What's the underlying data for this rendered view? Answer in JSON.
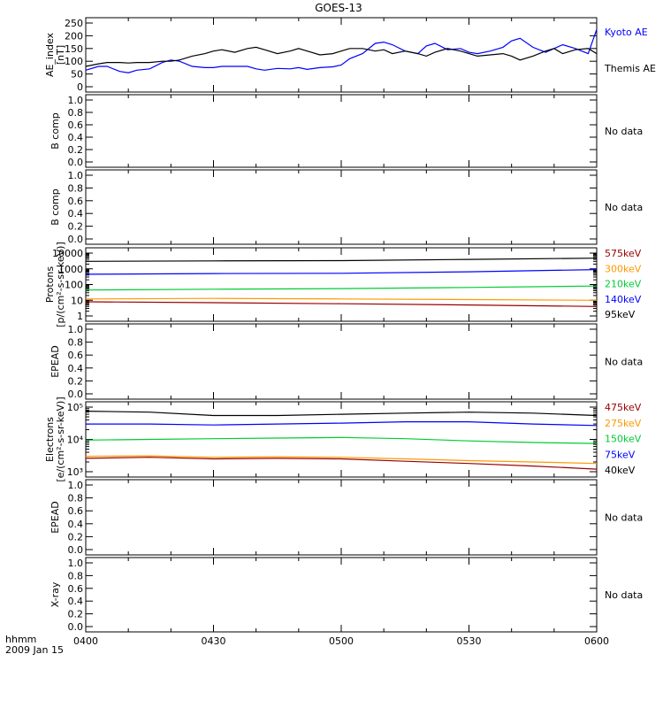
{
  "title": "GOES-13",
  "footer": {
    "unit": "hhmm",
    "date": "2009 Jan 15"
  },
  "time_ticks": [
    "0400",
    "0430",
    "0500",
    "0530",
    "0600"
  ],
  "chart_data": [
    {
      "id": "ae",
      "type": "line",
      "ylabel": [
        "AE_index",
        "[nT]"
      ],
      "ylim": [
        0,
        250
      ],
      "yticks": [
        "0",
        "50",
        "100",
        "150",
        "200",
        "250"
      ],
      "x_range": [
        "04:00",
        "06:00"
      ],
      "legend": [
        {
          "label": "Kyoto AE",
          "color": "#0000ff"
        },
        {
          "label": "Themis AE",
          "color": "#000000"
        }
      ],
      "series": [
        {
          "name": "Kyoto AE",
          "color": "#0000ff",
          "t": [
            0,
            3,
            5,
            8,
            10,
            12,
            15,
            18,
            20,
            22,
            25,
            28,
            30,
            32,
            35,
            38,
            40,
            42,
            45,
            48,
            50,
            52,
            55,
            58,
            60,
            62,
            65,
            68,
            70,
            72,
            75,
            78,
            80,
            82,
            85,
            88,
            90,
            92,
            95,
            98,
            100,
            102,
            105,
            108,
            110,
            112,
            115,
            118,
            120
          ],
          "v": [
            65,
            80,
            80,
            60,
            55,
            65,
            70,
            95,
            105,
            100,
            80,
            75,
            75,
            80,
            80,
            80,
            70,
            65,
            72,
            70,
            75,
            68,
            75,
            78,
            85,
            110,
            130,
            170,
            175,
            165,
            140,
            130,
            160,
            170,
            145,
            150,
            135,
            130,
            140,
            155,
            180,
            190,
            155,
            135,
            150,
            165,
            150,
            130,
            225
          ]
        },
        {
          "name": "Themis AE",
          "color": "#000000",
          "t": [
            0,
            3,
            5,
            8,
            10,
            12,
            15,
            18,
            20,
            22,
            25,
            28,
            30,
            32,
            35,
            38,
            40,
            42,
            45,
            48,
            50,
            52,
            55,
            58,
            60,
            62,
            65,
            68,
            70,
            72,
            75,
            78,
            80,
            82,
            85,
            88,
            90,
            92,
            95,
            98,
            100,
            102,
            105,
            108,
            110,
            112,
            115,
            118,
            120
          ],
          "v": [
            80,
            90,
            95,
            95,
            93,
            95,
            95,
            100,
            100,
            105,
            120,
            130,
            140,
            145,
            135,
            150,
            155,
            145,
            130,
            140,
            150,
            140,
            125,
            130,
            140,
            150,
            150,
            140,
            145,
            130,
            140,
            130,
            120,
            135,
            150,
            140,
            130,
            120,
            125,
            130,
            120,
            105,
            120,
            140,
            150,
            130,
            145,
            150,
            130
          ]
        }
      ]
    },
    {
      "id": "b1",
      "type": "line",
      "ylabel": [
        "B comp"
      ],
      "ylim": [
        0,
        1
      ],
      "yticks": [
        "0.0",
        "0.2",
        "0.4",
        "0.6",
        "0.8",
        "1.0"
      ],
      "nodata": "No data"
    },
    {
      "id": "b2",
      "type": "line",
      "ylabel": [
        "B comp"
      ],
      "ylim": [
        0,
        1
      ],
      "yticks": [
        "0.0",
        "0.2",
        "0.4",
        "0.6",
        "0.8",
        "1.0"
      ],
      "nodata": "No data"
    },
    {
      "id": "protons",
      "type": "line",
      "log": true,
      "ylabel": [
        "Protons",
        "[p/(cm²-s-sr-keV)]"
      ],
      "ylim": [
        1,
        10000
      ],
      "yticks": [
        "1",
        "10",
        "100",
        "1000",
        "10000"
      ],
      "legend": [
        {
          "label": "575keV",
          "color": "#990000"
        },
        {
          "label": "300keV",
          "color": "#ff9900"
        },
        {
          "label": "210keV",
          "color": "#00cc33"
        },
        {
          "label": "140keV",
          "color": "#0000ff"
        },
        {
          "label": "95keV",
          "color": "#000000"
        }
      ],
      "series": [
        {
          "name": "95keV",
          "color": "#000000",
          "t": [
            0,
            30,
            60,
            90,
            120
          ],
          "v": [
            3000,
            3200,
            3300,
            4000,
            4800
          ]
        },
        {
          "name": "140keV",
          "color": "#0000ff",
          "t": [
            0,
            30,
            60,
            90,
            120
          ],
          "v": [
            450,
            500,
            520,
            650,
            900
          ]
        },
        {
          "name": "210keV",
          "color": "#00cc33",
          "t": [
            0,
            30,
            60,
            90,
            120
          ],
          "v": [
            45,
            50,
            55,
            65,
            80
          ]
        },
        {
          "name": "300keV",
          "color": "#ff9900",
          "t": [
            0,
            30,
            60,
            90,
            120
          ],
          "v": [
            12,
            13,
            12,
            11,
            10
          ]
        },
        {
          "name": "575keV",
          "color": "#990000",
          "t": [
            0,
            30,
            60,
            90,
            120
          ],
          "v": [
            8,
            7,
            6,
            5,
            4
          ]
        }
      ]
    },
    {
      "id": "epead1",
      "type": "line",
      "ylabel": [
        "EPEAD"
      ],
      "ylim": [
        0,
        1
      ],
      "yticks": [
        "0.0",
        "0.2",
        "0.4",
        "0.6",
        "0.8",
        "1.0"
      ],
      "nodata": "No data"
    },
    {
      "id": "electrons",
      "type": "line",
      "log": true,
      "ylabel": [
        "Electrons",
        "[e/(cm²-s-sr-keV)]"
      ],
      "ylim": [
        1000,
        100000
      ],
      "yticks": [
        "10³",
        "10⁴",
        "10⁵"
      ],
      "legend": [
        {
          "label": "475keV",
          "color": "#990000"
        },
        {
          "label": "275keV",
          "color": "#ff9900"
        },
        {
          "label": "150keV",
          "color": "#00cc33"
        },
        {
          "label": "75keV",
          "color": "#0000ff"
        },
        {
          "label": "40keV",
          "color": "#000000"
        }
      ],
      "series": [
        {
          "name": "40keV",
          "color": "#000000",
          "t": [
            0,
            15,
            30,
            45,
            60,
            75,
            90,
            105,
            120
          ],
          "v": [
            75000,
            70000,
            55000,
            55000,
            60000,
            65000,
            70000,
            65000,
            55000
          ]
        },
        {
          "name": "75keV",
          "color": "#0000ff",
          "t": [
            0,
            15,
            30,
            45,
            60,
            75,
            90,
            105,
            120
          ],
          "v": [
            30000,
            30000,
            28000,
            30000,
            32000,
            35000,
            35000,
            30000,
            27000
          ]
        },
        {
          "name": "150keV",
          "color": "#00cc33",
          "t": [
            0,
            15,
            30,
            45,
            60,
            75,
            90,
            105,
            120
          ],
          "v": [
            9500,
            10000,
            10500,
            11000,
            11500,
            10500,
            9000,
            8000,
            7500
          ]
        },
        {
          "name": "275keV",
          "color": "#ff9900",
          "t": [
            0,
            15,
            30,
            45,
            60,
            75,
            90,
            105,
            120
          ],
          "v": [
            3000,
            3100,
            2800,
            2900,
            2800,
            2500,
            2200,
            2000,
            1800
          ]
        },
        {
          "name": "475keV",
          "color": "#990000",
          "t": [
            0,
            15,
            30,
            45,
            60,
            75,
            90,
            105,
            120
          ],
          "v": [
            2600,
            2800,
            2500,
            2600,
            2500,
            2100,
            1800,
            1500,
            1200
          ]
        }
      ]
    },
    {
      "id": "epead2",
      "type": "line",
      "ylabel": [
        "EPEAD"
      ],
      "ylim": [
        0,
        1
      ],
      "yticks": [
        "0.0",
        "0.2",
        "0.4",
        "0.6",
        "0.8",
        "1.0"
      ],
      "nodata": "No data"
    },
    {
      "id": "xray",
      "type": "line",
      "ylabel": [
        "X-ray"
      ],
      "ylim": [
        0,
        1
      ],
      "yticks": [
        "0.0",
        "0.2",
        "0.4",
        "0.6",
        "0.8",
        "1.0"
      ],
      "nodata": "No data"
    }
  ]
}
